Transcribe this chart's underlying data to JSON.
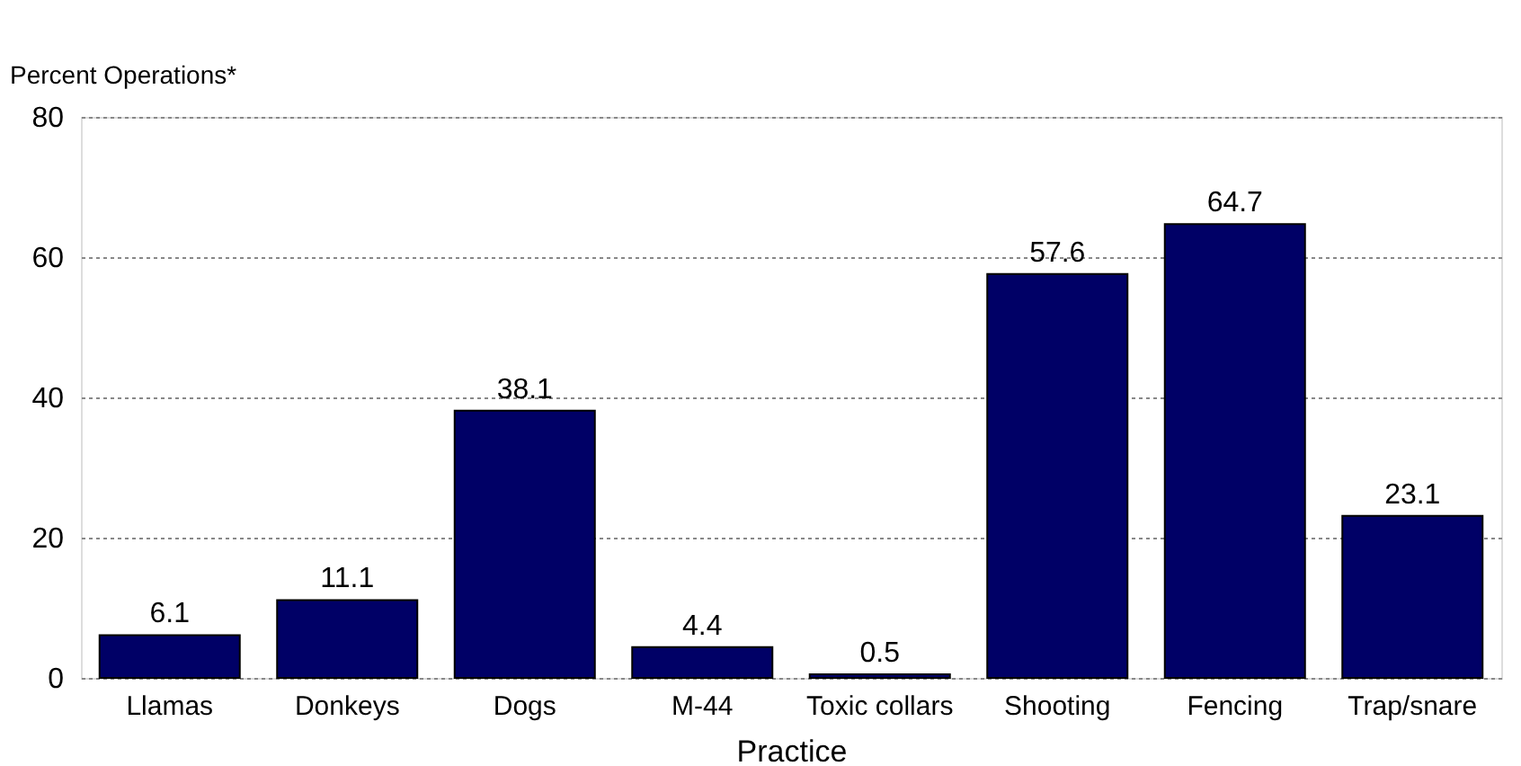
{
  "chart_data": {
    "type": "bar",
    "xlabel": "Practice",
    "ylabel": "Percent Operations*",
    "categories": [
      "Llamas",
      "Donkeys",
      "Dogs",
      "M-44",
      "Toxic collars",
      "Shooting",
      "Fencing",
      "Trap/snare"
    ],
    "values": [
      6.1,
      11.1,
      38.1,
      4.4,
      0.5,
      57.6,
      64.7,
      23.1
    ],
    "color": "#000066",
    "ylim": [
      0,
      80
    ],
    "yticks": [
      0,
      20,
      40,
      60,
      80
    ],
    "grid": "y",
    "data_labels": true
  }
}
